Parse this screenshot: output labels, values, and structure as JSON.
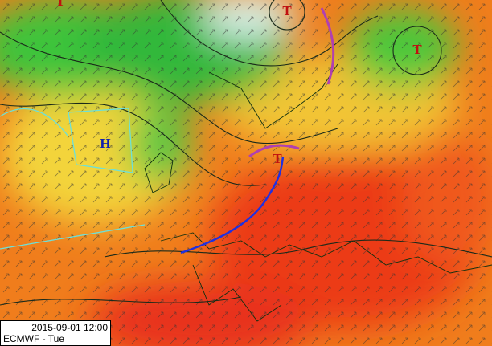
{
  "map": {
    "timestamp": "2015-09-01 12:00",
    "model_day": "ECMWF - Tue",
    "pressure_centers": [
      {
        "label": "T"
      },
      {
        "label": "T"
      },
      {
        "label": "T"
      },
      {
        "label": "H"
      },
      {
        "label": "T"
      }
    ]
  }
}
